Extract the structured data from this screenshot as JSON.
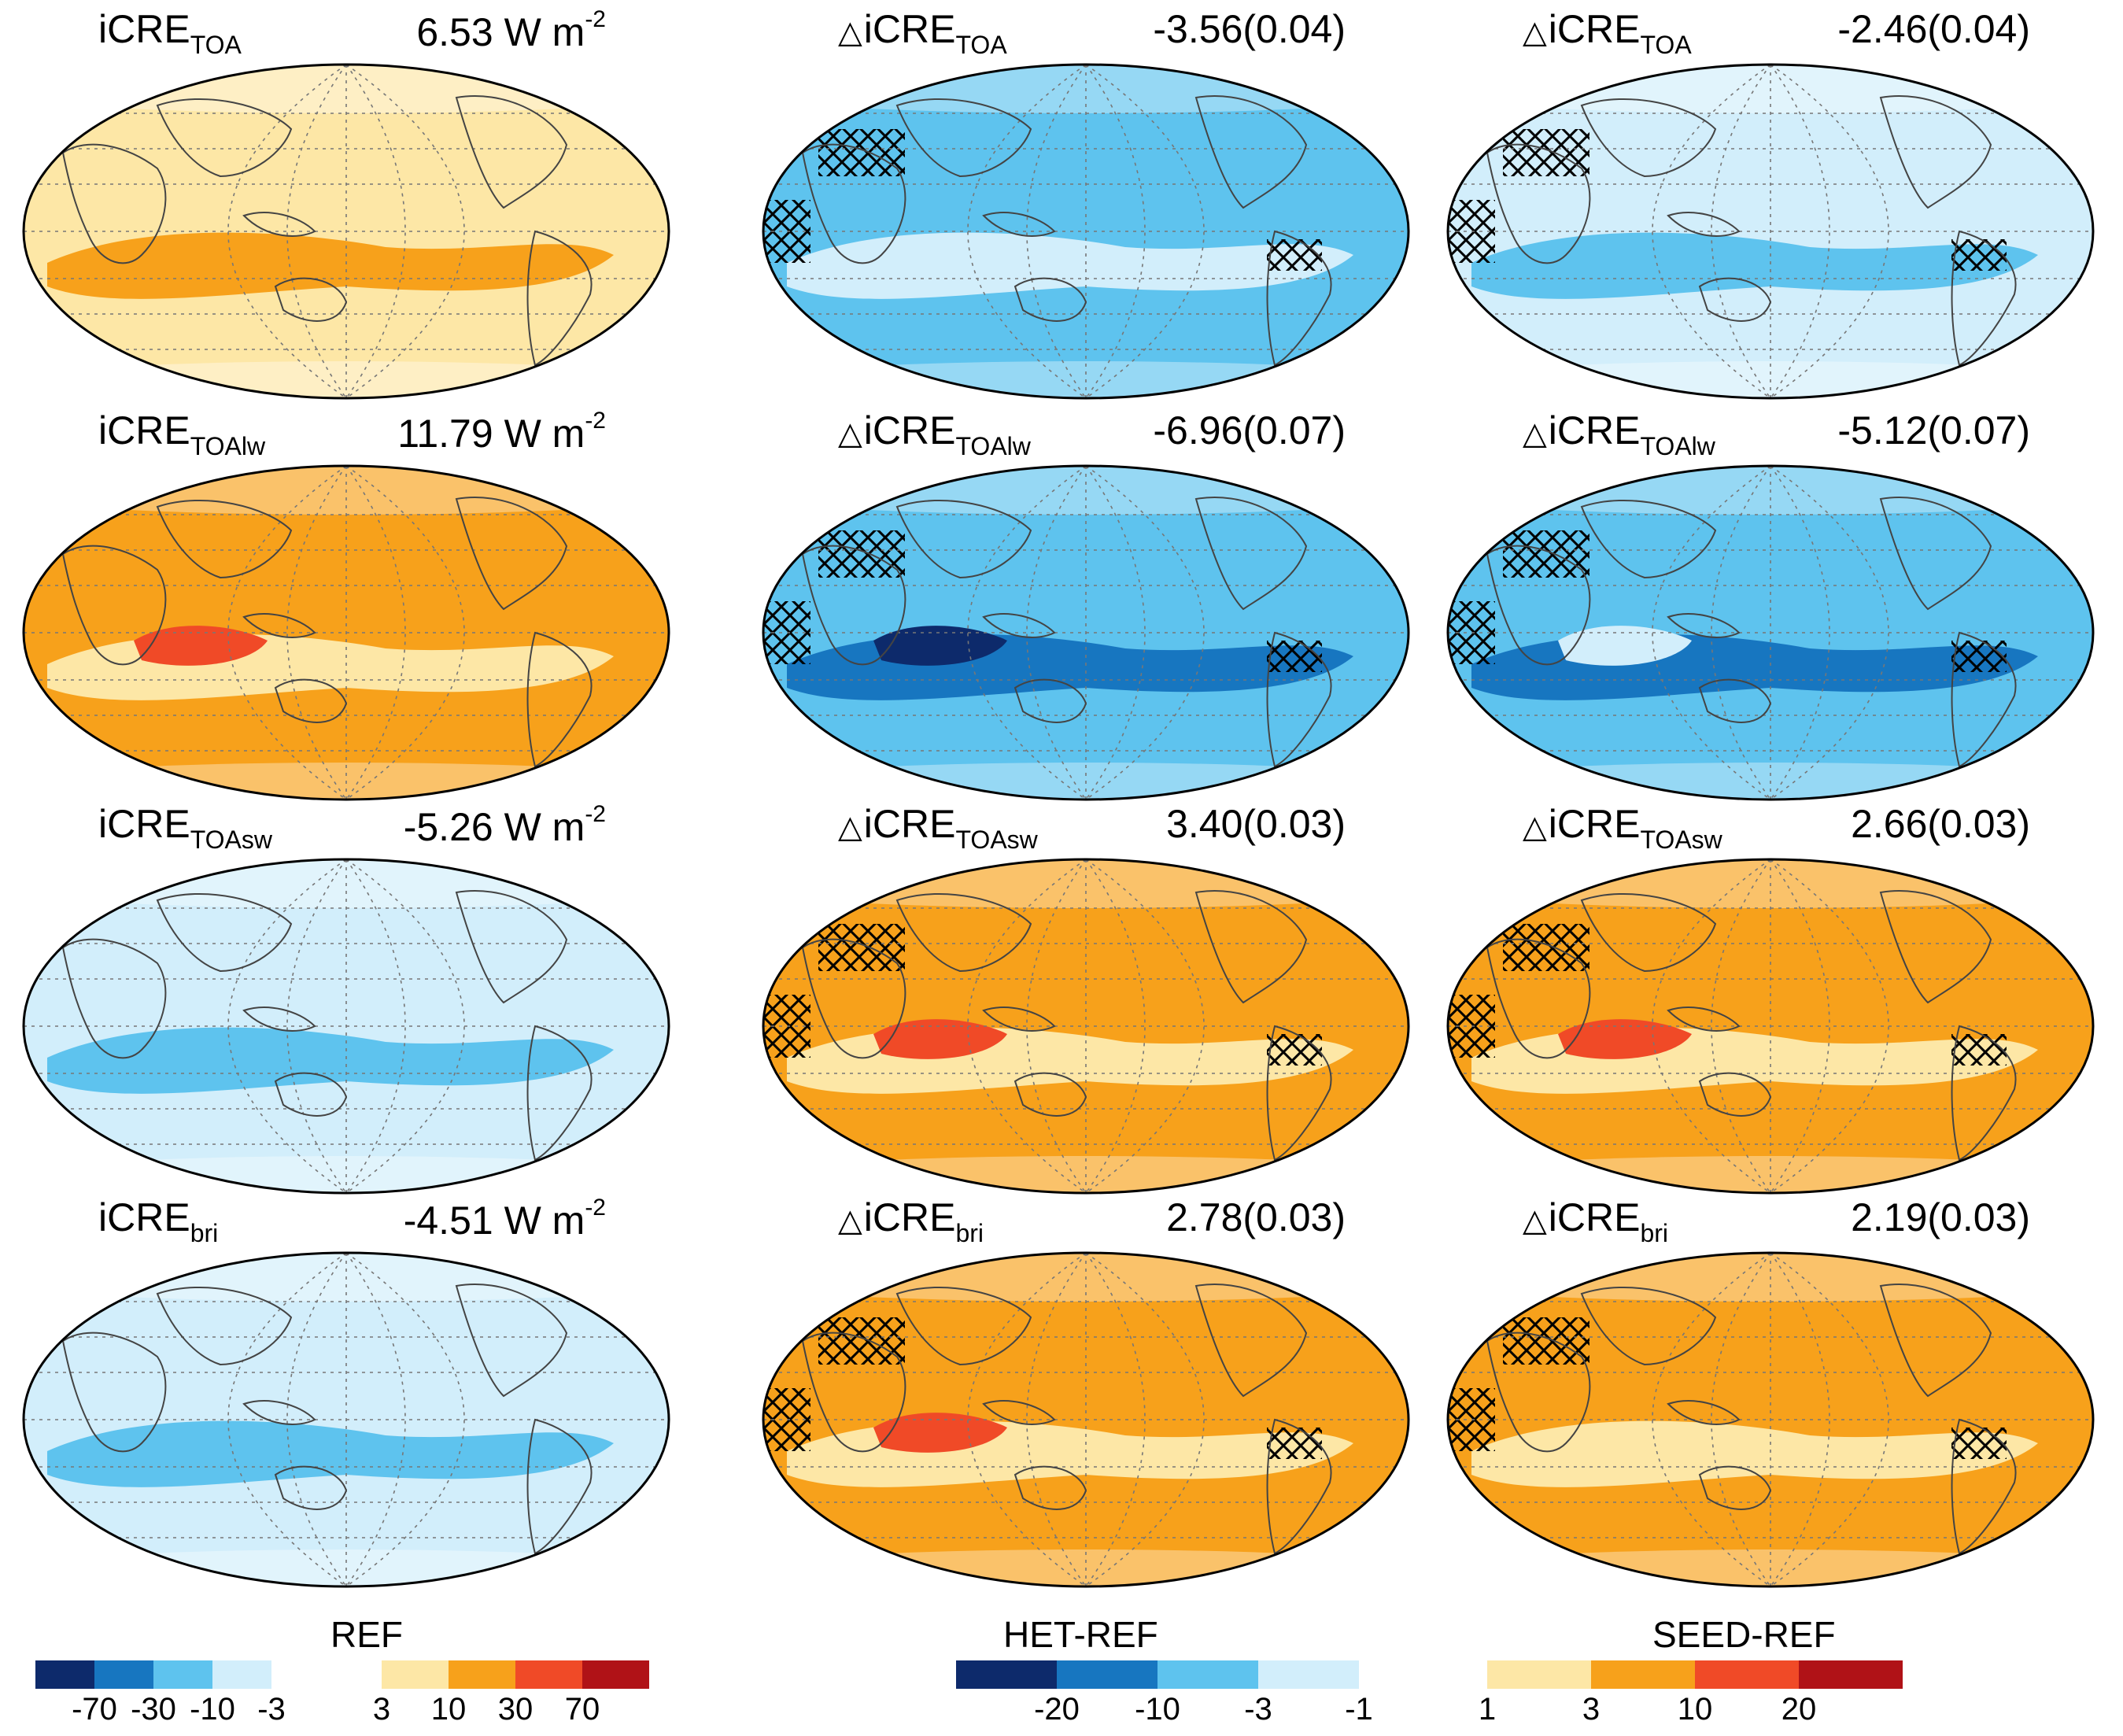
{
  "colors": {
    "neg": [
      "#0d2a6b",
      "#1776c0",
      "#5ec3ee",
      "#d2eefb"
    ],
    "pos": [
      "#fde7a6",
      "#f7a11b",
      "#f04a27",
      "#b01217"
    ],
    "het": [
      "#0d2a6b",
      "#1776c0",
      "#5ec3ee",
      "#d2eefb"
    ],
    "seed": [
      "#fde7a6",
      "#f7a11b",
      "#f04a27",
      "#b01217"
    ]
  },
  "panels": [
    {
      "id": "ref-toa",
      "prefix": "",
      "name": "iCRE",
      "sub": "TOA",
      "value": "6.53 W m",
      "exp": "-2",
      "fill": "pos0",
      "blobs": [
        "pos1"
      ],
      "hatch": false
    },
    {
      "id": "het-toa",
      "prefix": "△",
      "name": "iCRE",
      "sub": "TOA",
      "value": "-3.56(0.04)",
      "exp": "",
      "fill": "neg2",
      "blobs": [
        "neg3"
      ],
      "hatch": true
    },
    {
      "id": "seed-toa",
      "prefix": "△",
      "name": "iCRE",
      "sub": "TOA",
      "value": "-2.46(0.04)",
      "exp": "",
      "fill": "neg3",
      "blobs": [
        "neg2"
      ],
      "hatch": true
    },
    {
      "id": "ref-toalw",
      "prefix": "",
      "name": "iCRE",
      "sub": "TOAlw",
      "value": "11.79 W m",
      "exp": "-2",
      "fill": "pos1",
      "blobs": [
        "pos0",
        "pos2"
      ],
      "hatch": false
    },
    {
      "id": "het-toalw",
      "prefix": "△",
      "name": "iCRE",
      "sub": "TOAlw",
      "value": "-6.96(0.07)",
      "exp": "",
      "fill": "neg2",
      "blobs": [
        "neg1",
        "neg0"
      ],
      "hatch": true
    },
    {
      "id": "seed-toalw",
      "prefix": "△",
      "name": "iCRE",
      "sub": "TOAlw",
      "value": "-5.12(0.07)",
      "exp": "",
      "fill": "neg2",
      "blobs": [
        "neg1",
        "neg3"
      ],
      "hatch": true
    },
    {
      "id": "ref-toasw",
      "prefix": "",
      "name": "iCRE",
      "sub": "TOAsw",
      "value": "-5.26 W m",
      "exp": "-2",
      "fill": "neg3",
      "blobs": [
        "neg2"
      ],
      "hatch": false
    },
    {
      "id": "het-toasw",
      "prefix": "△",
      "name": "iCRE",
      "sub": "TOAsw",
      "value": "3.40(0.03)",
      "exp": "",
      "fill": "pos1",
      "blobs": [
        "pos0",
        "pos2"
      ],
      "hatch": true
    },
    {
      "id": "seed-toasw",
      "prefix": "△",
      "name": "iCRE",
      "sub": "TOAsw",
      "value": "2.66(0.03)",
      "exp": "",
      "fill": "pos1",
      "blobs": [
        "pos0",
        "pos2"
      ],
      "hatch": true
    },
    {
      "id": "ref-bri",
      "prefix": "",
      "name": "iCRE",
      "sub": "bri",
      "value": "-4.51 W m",
      "exp": "-2",
      "fill": "neg3",
      "blobs": [
        "neg2"
      ],
      "hatch": false
    },
    {
      "id": "het-bri",
      "prefix": "△",
      "name": "iCRE",
      "sub": "bri",
      "value": "2.78(0.03)",
      "exp": "",
      "fill": "pos1",
      "blobs": [
        "pos0",
        "pos2"
      ],
      "hatch": true
    },
    {
      "id": "seed-bri",
      "prefix": "△",
      "name": "iCRE",
      "sub": "bri",
      "value": "2.19(0.03)",
      "exp": "",
      "fill": "pos1",
      "blobs": [
        "pos0"
      ],
      "hatch": true
    }
  ],
  "colorbars": [
    {
      "id": "ref",
      "title": "REF",
      "labels": [
        "-70",
        "-30",
        "-10",
        "-3",
        "3",
        "10",
        "30",
        "70"
      ]
    },
    {
      "id": "het",
      "title": "HET-REF",
      "labels": [
        "-20",
        "-10",
        "-3",
        "-1"
      ]
    },
    {
      "id": "seed",
      "title": "SEED-REF",
      "labels": [
        "1",
        "3",
        "10",
        "20"
      ]
    }
  ]
}
